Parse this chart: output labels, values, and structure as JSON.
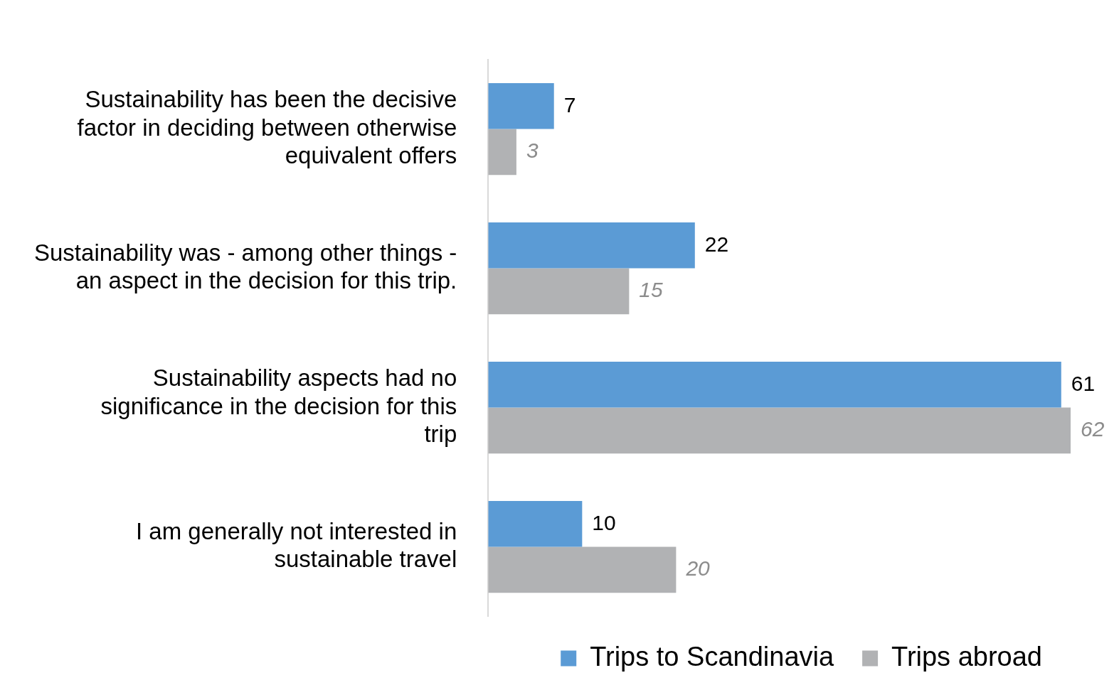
{
  "chart_data": {
    "type": "bar",
    "orientation": "horizontal",
    "categories": [
      "Sustainability has been the decisive factor in deciding between otherwise equivalent offers",
      "Sustainability was - among other things - an aspect in the decision for this trip.",
      "Sustainability aspects had no significance in the decision for this trip",
      "I am generally not interested in sustainable travel"
    ],
    "series": [
      {
        "name": "Trips to Scandinavia",
        "color": "#5b9bd5",
        "values": [
          7,
          22,
          61,
          10
        ]
      },
      {
        "name": "Trips abroad",
        "color": "#b1b2b4",
        "values": [
          3,
          15,
          62,
          20
        ]
      }
    ],
    "xlim": [
      0,
      62
    ],
    "tick_labels": "y",
    "data_labels": true,
    "legend": "bottom"
  }
}
